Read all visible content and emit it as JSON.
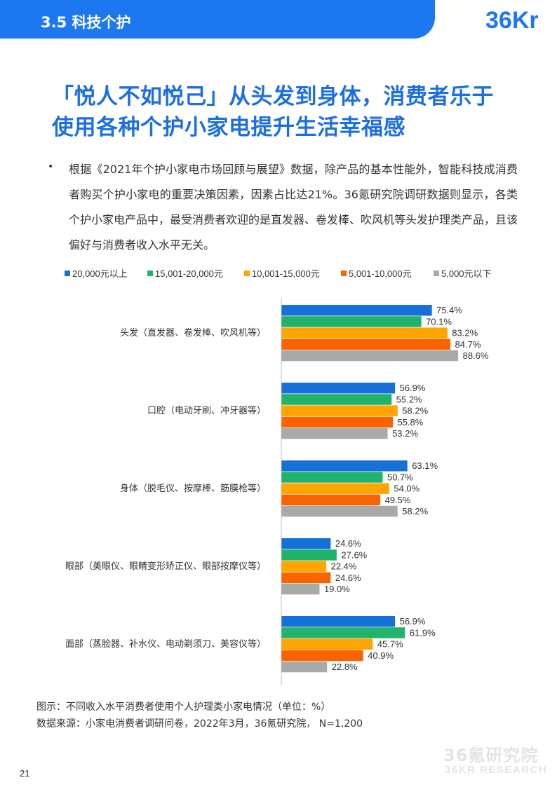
{
  "header": {
    "section_title": "3.5 科技个护",
    "logo_text": "36Kr"
  },
  "headline": {
    "line1": "「悦人不如悦己」从头发到身体，消费者乐于",
    "line2": "使用各种个护小家电提升生活幸福感"
  },
  "body": {
    "bullet": "•",
    "paragraph": "根据《2021年个护小家电市场回顾与展望》数据，除产品的基本性能外，智能科技成消费者购买个护小家电的重要决策因素，因素占比达21%。36氪研究院调研数据则显示，各类个护小家电产品中，最受消费者欢迎的是直发器、卷发棒、吹风机等头发护理类产品，且该偏好与消费者收入水平无关。"
  },
  "chart_data": {
    "type": "bar",
    "orientation": "horizontal",
    "categories": [
      "头发（直发器、卷发棒、吹风机等）",
      "口腔（电动牙刷、冲牙器等）",
      "身体（脱毛仪、按摩棒、筋膜枪等）",
      "眼部（美眼仪、眼睛变形矫正仪、眼部按摩仪等）",
      "面部（蒸脸器、补水仪、电动剃须刀、美容仪等）"
    ],
    "series": [
      {
        "name": "20,000元以上",
        "color": "#1570d8",
        "values": [
          75.4,
          56.9,
          63.1,
          24.6,
          56.9
        ]
      },
      {
        "name": "15,001-20,000元",
        "color": "#21b36b",
        "values": [
          70.1,
          55.2,
          50.7,
          27.6,
          61.9
        ]
      },
      {
        "name": "10,001-15,000元",
        "color": "#ffa500",
        "values": [
          83.2,
          58.2,
          54.0,
          22.4,
          45.7
        ]
      },
      {
        "name": "5,001-10,000元",
        "color": "#fa6400",
        "values": [
          84.7,
          55.8,
          49.5,
          24.6,
          40.9
        ]
      },
      {
        "name": "5,000元以下",
        "color": "#a9a9a9",
        "values": [
          88.6,
          53.2,
          58.2,
          19.0,
          22.8
        ]
      }
    ],
    "value_suffix": "%",
    "xlim": [
      0,
      100
    ],
    "legend_position": "top",
    "grid": false
  },
  "captions": {
    "figure": "图示：不同收入水平消费者使用个人护理类小家电情况（单位：%）",
    "source": "数据来源：小家电消费者调研问卷，2022年3月，36氪研究院，  N=1,200"
  },
  "watermark": {
    "cn": "36氪研究院",
    "en": "36KR RESEARCH"
  },
  "page_number": "21"
}
